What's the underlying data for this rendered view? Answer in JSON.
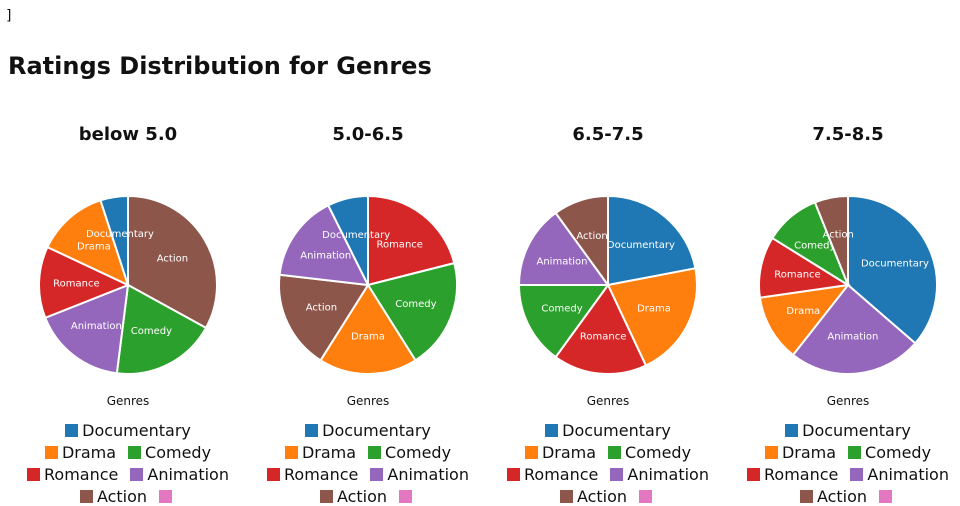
{
  "stray_text": "]",
  "title": "Ratings Distribution for Genres",
  "colors": {
    "Documentary": "#1f77b4",
    "Drama": "#ff7f0e",
    "Comedy": "#2ca02c",
    "Romance": "#d62728",
    "Animation": "#9467bd",
    "Action": "#8c564b",
    "extra": "#e377c2"
  },
  "chart_data": [
    {
      "type": "pie",
      "title": "below 5.0",
      "xlabel": "Genres",
      "slices": [
        {
          "label": "Action",
          "value": 33
        },
        {
          "label": "Comedy",
          "value": 19
        },
        {
          "label": "Animation",
          "value": 17
        },
        {
          "label": "Romance",
          "value": 13
        },
        {
          "label": "Drama",
          "value": 13
        },
        {
          "label": "Documentary",
          "value": 5
        }
      ],
      "legend": [
        "Documentary",
        "Drama",
        "Comedy",
        "Romance",
        "Animation",
        "Action",
        ""
      ]
    },
    {
      "type": "pie",
      "title": "5.0-6.5",
      "xlabel": "Genres",
      "slices": [
        {
          "label": "Romance",
          "value": 20
        },
        {
          "label": "Comedy",
          "value": 19
        },
        {
          "label": "Drama",
          "value": 17
        },
        {
          "label": "Action",
          "value": 17
        },
        {
          "label": "Animation",
          "value": 15
        },
        {
          "label": "Documentary",
          "value": 7
        }
      ],
      "legend": [
        "Documentary",
        "Drama",
        "Comedy",
        "Romance",
        "Animation",
        "Action",
        ""
      ]
    },
    {
      "type": "pie",
      "title": "6.5-7.5",
      "xlabel": "Genres",
      "slices": [
        {
          "label": "Documentary",
          "value": 22
        },
        {
          "label": "Drama",
          "value": 21
        },
        {
          "label": "Romance",
          "value": 17
        },
        {
          "label": "Comedy",
          "value": 15
        },
        {
          "label": "Animation",
          "value": 15
        },
        {
          "label": "Action",
          "value": 10
        }
      ],
      "legend": [
        "Documentary",
        "Drama",
        "Comedy",
        "Romance",
        "Animation",
        "Action",
        ""
      ]
    },
    {
      "type": "pie",
      "title": "7.5-8.5",
      "xlabel": "Genres",
      "slices": [
        {
          "label": "Documentary",
          "value": 36
        },
        {
          "label": "Animation",
          "value": 24
        },
        {
          "label": "Drama",
          "value": 12
        },
        {
          "label": "Romance",
          "value": 11
        },
        {
          "label": "Comedy",
          "value": 10
        },
        {
          "label": "Action",
          "value": 6
        }
      ],
      "legend": [
        "Documentary",
        "Drama",
        "Comedy",
        "Romance",
        "Animation",
        "Action",
        ""
      ]
    }
  ]
}
